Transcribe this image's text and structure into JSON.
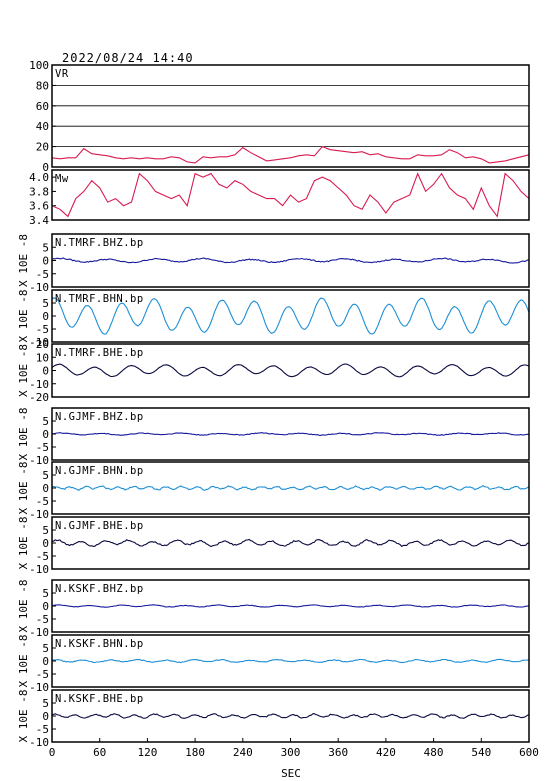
{
  "chart_data": {
    "type": "line",
    "title": "2022/08/24  14:40",
    "xlabel": "SEC",
    "xlim": [
      0,
      600
    ],
    "xticks": [
      0,
      60,
      120,
      180,
      240,
      300,
      360,
      420,
      480,
      540,
      600
    ],
    "grid": false,
    "panels": [
      {
        "name": "VR",
        "ylim": [
          0,
          100
        ],
        "yticks": [
          0,
          20,
          40,
          60,
          80,
          100
        ],
        "hgrid": [
          20,
          40,
          60,
          80
        ],
        "ylabel": "",
        "color": "#d81b4f",
        "x": [
          0,
          10,
          20,
          30,
          40,
          50,
          60,
          70,
          80,
          90,
          100,
          110,
          120,
          130,
          140,
          150,
          160,
          170,
          180,
          190,
          200,
          210,
          220,
          230,
          240,
          250,
          260,
          270,
          280,
          290,
          300,
          310,
          320,
          330,
          340,
          350,
          360,
          370,
          380,
          390,
          400,
          410,
          420,
          430,
          440,
          450,
          460,
          470,
          480,
          490,
          500,
          510,
          520,
          530,
          540,
          550,
          560,
          570,
          580,
          590,
          600
        ],
        "values": [
          9,
          8,
          9,
          9,
          18,
          13,
          12,
          11,
          9,
          8,
          9,
          8,
          9,
          8,
          8,
          10,
          9,
          5,
          4,
          10,
          9,
          10,
          10,
          12,
          19,
          14,
          10,
          6,
          7,
          8,
          9,
          11,
          12,
          11,
          20,
          17,
          16,
          15,
          14,
          15,
          12,
          13,
          10,
          9,
          8,
          8,
          12,
          11,
          11,
          12,
          17,
          14,
          9,
          10,
          8,
          4,
          5,
          6,
          8,
          10,
          12
        ]
      },
      {
        "name": "Mw",
        "ylim": [
          3.4,
          4.1
        ],
        "yticks": [
          3.4,
          3.6,
          3.8,
          4.0
        ],
        "ylabel": "",
        "color": "#d81b4f",
        "x": [
          0,
          10,
          20,
          30,
          40,
          50,
          60,
          70,
          80,
          90,
          100,
          110,
          120,
          130,
          140,
          150,
          160,
          170,
          180,
          190,
          200,
          210,
          220,
          230,
          240,
          250,
          260,
          270,
          280,
          290,
          300,
          310,
          320,
          330,
          340,
          350,
          360,
          370,
          380,
          390,
          400,
          410,
          420,
          430,
          440,
          450,
          460,
          470,
          480,
          490,
          500,
          510,
          520,
          530,
          540,
          550,
          560,
          570,
          580,
          590,
          600
        ],
        "values": [
          3.6,
          3.55,
          3.45,
          3.7,
          3.8,
          3.95,
          3.85,
          3.65,
          3.7,
          3.6,
          3.65,
          4.05,
          3.95,
          3.8,
          3.75,
          3.7,
          3.75,
          3.6,
          4.05,
          4.0,
          4.05,
          3.9,
          3.85,
          3.95,
          3.9,
          3.8,
          3.75,
          3.7,
          3.7,
          3.6,
          3.75,
          3.65,
          3.7,
          3.95,
          4.0,
          3.95,
          3.85,
          3.75,
          3.6,
          3.55,
          3.75,
          3.65,
          3.5,
          3.65,
          3.7,
          3.75,
          4.05,
          3.8,
          3.9,
          4.05,
          3.85,
          3.75,
          3.7,
          3.55,
          3.85,
          3.6,
          3.45,
          4.05,
          3.95,
          3.8,
          3.7
        ]
      },
      {
        "name": "N.TMRF.BHZ.bp",
        "ylim": [
          -10,
          10
        ],
        "yticks": [
          -10,
          -5,
          0,
          5
        ],
        "ylabel": "X 10E -8",
        "color": "#1a1a9e",
        "wave": {
          "amplitude": 0.6,
          "period": 60,
          "phase": 0.5,
          "noise": 0.4
        }
      },
      {
        "name": "N.TMRF.BHN.bp",
        "ylim": [
          -10,
          10
        ],
        "yticks": [
          -10,
          -5,
          0,
          5
        ],
        "ylabel": "X 10E -8",
        "color": "#1e8fd6",
        "wave": {
          "amplitude": 5.2,
          "period": 42,
          "phase": 1.1,
          "noise": 0.3
        }
      },
      {
        "name": "N.TMRF.BHE.bp",
        "ylim": [
          -20,
          20
        ],
        "yticks": [
          -20,
          -10,
          0,
          10,
          20
        ],
        "ylabel": "X 10E -8",
        "color": "#0a0a40",
        "wave": {
          "amplitude": 3.5,
          "period": 45,
          "phase": 0.3,
          "noise": 0.3
        }
      },
      {
        "name": "N.GJMF.BHZ.bp",
        "ylim": [
          -10,
          10
        ],
        "yticks": [
          -10,
          -5,
          0,
          5
        ],
        "ylabel": "X 10E -8",
        "color": "#1a1a9e",
        "wave": {
          "amplitude": 0.3,
          "period": 50,
          "phase": 0.0,
          "noise": 0.3
        }
      },
      {
        "name": "N.GJMF.BHN.bp",
        "ylim": [
          -10,
          10
        ],
        "yticks": [
          -10,
          -5,
          0,
          5
        ],
        "ylabel": "X 10E -8",
        "color": "#1e8fd6",
        "wave": {
          "amplitude": 0.5,
          "period": 20,
          "phase": 0.7,
          "noise": 0.5
        }
      },
      {
        "name": "N.GJMF.BHE.bp",
        "ylim": [
          -10,
          10
        ],
        "yticks": [
          -10,
          -5,
          0,
          5
        ],
        "ylabel": "X 10E -8",
        "color": "#0a0a40",
        "wave": {
          "amplitude": 0.9,
          "period": 30,
          "phase": 0.2,
          "noise": 0.5
        }
      },
      {
        "name": "N.KSKF.BHZ.bp",
        "ylim": [
          -10,
          10
        ],
        "yticks": [
          -10,
          -5,
          0,
          5
        ],
        "ylabel": "X 10E -8",
        "color": "#1a1a9e",
        "wave": {
          "amplitude": 0.3,
          "period": 40,
          "phase": 0.4,
          "noise": 0.2
        }
      },
      {
        "name": "N.KSKF.BHN.bp",
        "ylim": [
          -10,
          10
        ],
        "yticks": [
          -10,
          -5,
          0,
          5
        ],
        "ylabel": "X 10E -8",
        "color": "#1e8fd6",
        "wave": {
          "amplitude": 0.4,
          "period": 35,
          "phase": 0.9,
          "noise": 0.3
        }
      },
      {
        "name": "N.KSKF.BHE.bp",
        "ylim": [
          -10,
          10
        ],
        "yticks": [
          -10,
          -5,
          0,
          5
        ],
        "ylabel": "X 10E -8",
        "color": "#0a0a40",
        "wave": {
          "amplitude": 0.6,
          "period": 25,
          "phase": 0.6,
          "noise": 0.4
        }
      }
    ]
  }
}
